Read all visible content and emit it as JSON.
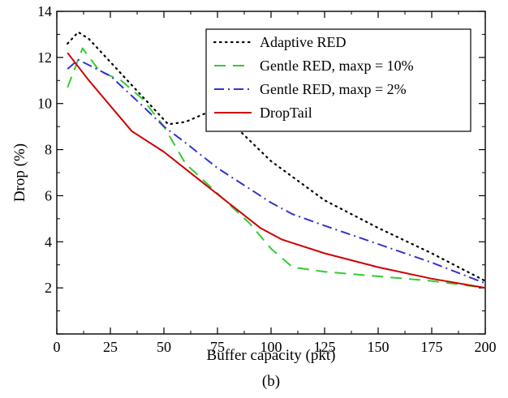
{
  "chart_data": {
    "type": "line",
    "title": "",
    "xlabel": "Buffer capacity (pkt)",
    "ylabel": "Drop (%)",
    "caption": "(b)",
    "xlim": [
      0,
      200
    ],
    "ylim": [
      0,
      14
    ],
    "xticks": [
      0,
      25,
      50,
      75,
      100,
      125,
      150,
      175,
      200
    ],
    "yticks": [
      2,
      4,
      6,
      8,
      10,
      12,
      14
    ],
    "grid": false,
    "legend_position": "top-right",
    "series": [
      {
        "name": "Adaptive RED",
        "color": "#000000",
        "dash": "dotted",
        "x": [
          5,
          10,
          15,
          25,
          35,
          45,
          52,
          60,
          70,
          80,
          100,
          125,
          150,
          175,
          200
        ],
        "y": [
          12.6,
          13.1,
          12.8,
          11.8,
          10.8,
          9.8,
          9.1,
          9.2,
          9.6,
          9.3,
          7.5,
          5.8,
          4.6,
          3.5,
          2.3
        ]
      },
      {
        "name": "Gentle RED, maxp = 10%",
        "color": "#33cc33",
        "dash": "dashed",
        "x": [
          5,
          12,
          20,
          25,
          30,
          40,
          50,
          60,
          75,
          90,
          100,
          110,
          125,
          150,
          175,
          200
        ],
        "y": [
          10.7,
          12.4,
          11.4,
          11.2,
          11.0,
          10.2,
          9.0,
          7.4,
          6.1,
          4.8,
          3.7,
          2.9,
          2.7,
          2.5,
          2.3,
          2.0
        ]
      },
      {
        "name": "Gentle RED, maxp = 2%",
        "color": "#3333cc",
        "dash": "dashdot",
        "x": [
          5,
          10,
          25,
          40,
          50,
          60,
          75,
          90,
          100,
          110,
          125,
          150,
          175,
          200
        ],
        "y": [
          11.5,
          11.9,
          11.2,
          9.9,
          9.0,
          8.3,
          7.2,
          6.3,
          5.7,
          5.2,
          4.7,
          3.9,
          3.1,
          2.2
        ]
      },
      {
        "name": "DropTail",
        "color": "#cc0000",
        "dash": "solid",
        "x": [
          5,
          15,
          25,
          35,
          50,
          65,
          80,
          95,
          105,
          125,
          150,
          175,
          200
        ],
        "y": [
          12.2,
          11.0,
          9.9,
          8.8,
          7.9,
          6.8,
          5.7,
          4.6,
          4.1,
          3.5,
          2.9,
          2.4,
          2.0
        ]
      }
    ]
  }
}
